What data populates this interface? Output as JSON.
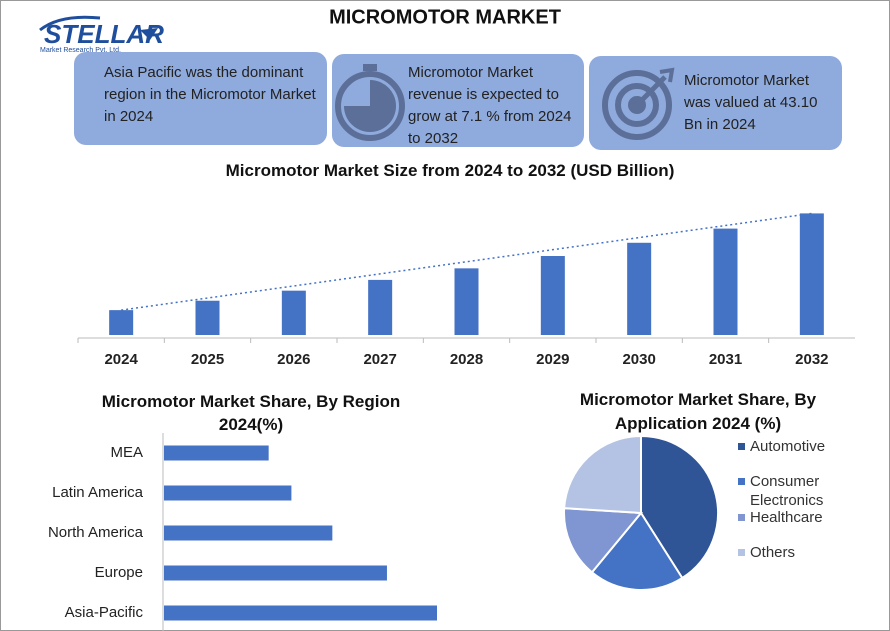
{
  "header": {
    "title": "MICROMOTOR MARKET",
    "logo": "STELLAR",
    "logo_tagline": "Market Research Pvt. Ltd."
  },
  "cards": [
    {
      "text": "Asia Pacific was the dominant region in the Micromotor Market in 2024"
    },
    {
      "text": "Micromotor Market revenue is expected to grow at 7.1 % from 2024 to 2032"
    },
    {
      "text": "Micromotor Market was valued at 43.10 Bn in 2024"
    }
  ],
  "chart_data": [
    {
      "type": "bar",
      "title": "Micromotor Market Size from 2024 to 2032 (USD Billion)",
      "categories": [
        "2024",
        "2025",
        "2026",
        "2027",
        "2028",
        "2029",
        "2030",
        "2031",
        "2032"
      ],
      "values": [
        43.1,
        46.16,
        49.44,
        52.95,
        56.71,
        60.73,
        65.04,
        69.66,
        74.61
      ],
      "color": "#4472c4",
      "ylim": [
        35,
        78
      ],
      "trendline": true
    },
    {
      "type": "barh",
      "title": "Micromotor Market Share, By Region 2024(%)",
      "categories": [
        "MEA",
        "Latin America",
        "North America",
        "Europe",
        "Asia-Pacific"
      ],
      "values": [
        11.5,
        14,
        18.5,
        24.5,
        30
      ],
      "color": "#4472c4",
      "xlim": [
        0,
        40
      ]
    },
    {
      "type": "pie",
      "title": "Micromotor Market Share, By Application 2024 (%)",
      "categories": [
        "Automotive",
        "Consumer Electronics",
        "Healthcare",
        "Others"
      ],
      "values": [
        41,
        20,
        15,
        24
      ],
      "colors": [
        "#2f5597",
        "#4472c4",
        "#8096d3",
        "#b4c2e3"
      ]
    }
  ]
}
